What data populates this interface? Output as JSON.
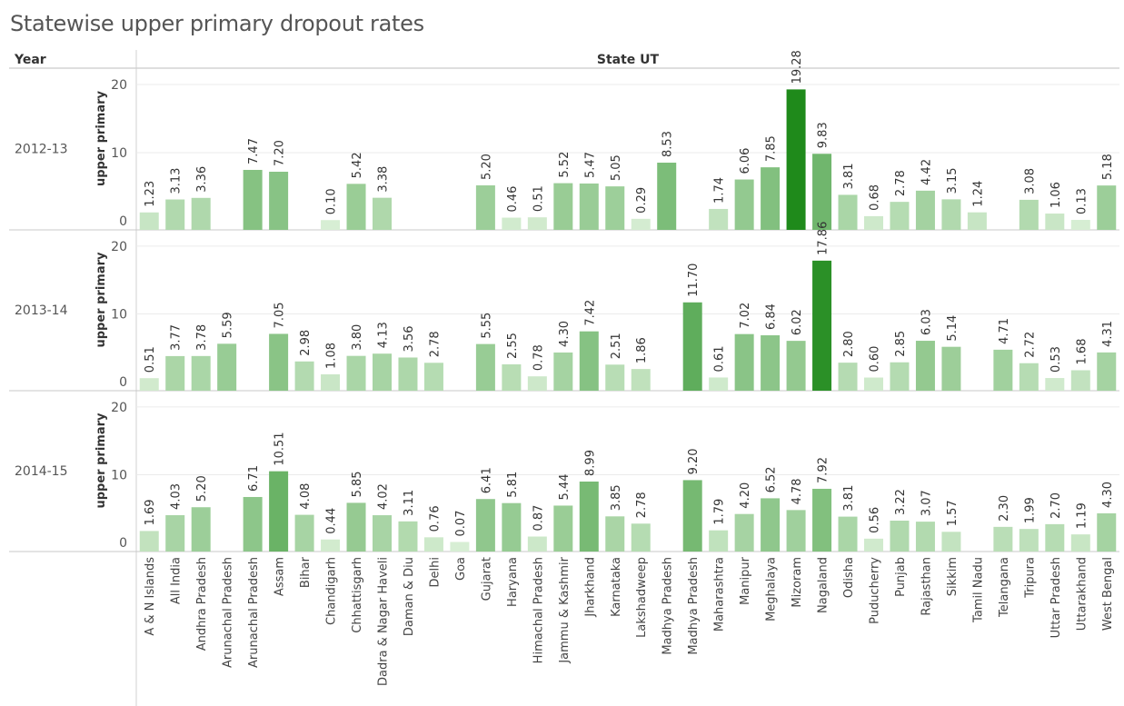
{
  "title": "Statewise upper primary dropout rates",
  "header": {
    "row_field": "Year",
    "column_field": "State UT"
  },
  "colors": {
    "scale_light": "#d9efd6",
    "scale_dark": "#1f8a1b",
    "grid": "#ebebeb",
    "rule": "#c8c8c8"
  },
  "chart_data": {
    "type": "bar",
    "title": "Statewise upper primary dropout rates",
    "xlabel": "State UT",
    "ylabel": "upper primary",
    "ylim": [
      0,
      20
    ],
    "yticks": [
      0,
      10,
      20
    ],
    "categories": [
      "A & N Islands",
      "All India",
      "Andhra Pradesh",
      "Arunachal  Pradesh",
      "Arunachal Pradesh",
      "Assam",
      "Bihar",
      "Chandigarh",
      "Chhattisgarh",
      "Dadra & Nagar Haveli",
      "Daman & Diu",
      "Delhi",
      "Goa",
      "Gujarat",
      "Haryana",
      "Himachal Pradesh",
      "Jammu & Kashmir",
      "Jharkhand",
      "Karnataka",
      "Lakshadweep",
      "Madhya  Pradesh",
      "Madhya Pradesh",
      "Maharashtra",
      "Manipur",
      "Meghalaya",
      "Mizoram",
      "Nagaland",
      "Odisha",
      "Puducherry",
      "Punjab",
      "Rajasthan",
      "Sikkim",
      "Tamil  Nadu",
      "Telangana",
      "Tripura",
      "Uttar Pradesh",
      "Uttarakhand",
      "West Bengal"
    ],
    "series": [
      {
        "name": "2012-13",
        "values": [
          1.23,
          3.13,
          3.36,
          null,
          7.47,
          7.2,
          null,
          0.1,
          5.42,
          3.38,
          null,
          null,
          null,
          5.2,
          0.46,
          0.51,
          5.52,
          5.47,
          5.05,
          0.29,
          8.53,
          null,
          1.74,
          6.06,
          7.85,
          19.28,
          9.83,
          3.81,
          0.68,
          2.78,
          4.42,
          3.15,
          1.24,
          null,
          3.08,
          1.06,
          0.13,
          5.18
        ],
        "labels": [
          "1.23",
          "3.13",
          "3.36",
          null,
          "7.47",
          "7.20",
          null,
          "0.10",
          "5.42",
          "3.38",
          null,
          null,
          null,
          "5.20",
          "0.46",
          "0.51",
          "5.52",
          "5.47",
          "5.05",
          "0.29",
          "8.53",
          null,
          "1.74",
          "6.06",
          "7.85",
          "19.28",
          "9.83",
          "3.81",
          "0.68",
          "2.78",
          "4.42",
          "3.15",
          "1.24",
          null,
          "3.08",
          "1.06",
          "0.13",
          "5.18"
        ]
      },
      {
        "name": "2013-14",
        "values": [
          0.51,
          3.77,
          3.78,
          5.59,
          null,
          7.05,
          2.98,
          1.08,
          3.8,
          4.13,
          3.56,
          2.78,
          null,
          5.55,
          2.55,
          0.78,
          4.3,
          7.42,
          2.51,
          1.86,
          null,
          11.7,
          0.61,
          7.02,
          6.84,
          6.02,
          17.86,
          2.8,
          0.6,
          2.85,
          6.03,
          5.14,
          null,
          4.71,
          2.72,
          0.53,
          1.68,
          4.31
        ],
        "labels": [
          "0.51",
          "3.77",
          "3.78",
          "5.59",
          null,
          "7.05",
          "2.98",
          "1.08",
          "3.80",
          "4.13",
          "3.56",
          "2.78",
          null,
          "5.55",
          "2.55",
          "0.78",
          "4.30",
          "7.42",
          "2.51",
          "1.86",
          null,
          "11.70",
          "0.61",
          "7.02",
          "6.84",
          "6.02",
          "17.86",
          "2.80",
          "0.60",
          "2.85",
          "6.03",
          "5.14",
          null,
          "4.71",
          "2.72",
          "0.53",
          "1.68",
          "4.31"
        ]
      },
      {
        "name": "2014-15",
        "values": [
          1.69,
          4.03,
          5.2,
          null,
          6.71,
          10.51,
          4.08,
          0.44,
          5.85,
          4.02,
          3.11,
          0.76,
          0.07,
          6.41,
          5.81,
          0.87,
          5.44,
          8.99,
          3.85,
          2.78,
          null,
          9.2,
          1.79,
          4.2,
          6.52,
          4.78,
          7.92,
          3.81,
          0.56,
          3.22,
          3.07,
          1.57,
          null,
          2.3,
          1.99,
          2.7,
          1.19,
          4.3
        ],
        "labels": [
          "1.69",
          "4.03",
          "5.20",
          null,
          "6.71",
          "10.51",
          "4.08",
          "0.44",
          "5.85",
          "4.02",
          "3.11",
          "0.76",
          "0.07",
          "6.41",
          "5.81",
          "0.87",
          "5.44",
          "8.99",
          "3.85",
          "2.78",
          null,
          "9.20",
          "1.79",
          "4.20",
          "6.52",
          "4.78",
          "7.92",
          "3.81",
          "0.56",
          "3.22",
          "3.07",
          "1.57",
          null,
          "2.30",
          "1.99",
          "2.70",
          "1.19",
          "4.30"
        ]
      }
    ],
    "grid": true,
    "legend": "none"
  }
}
